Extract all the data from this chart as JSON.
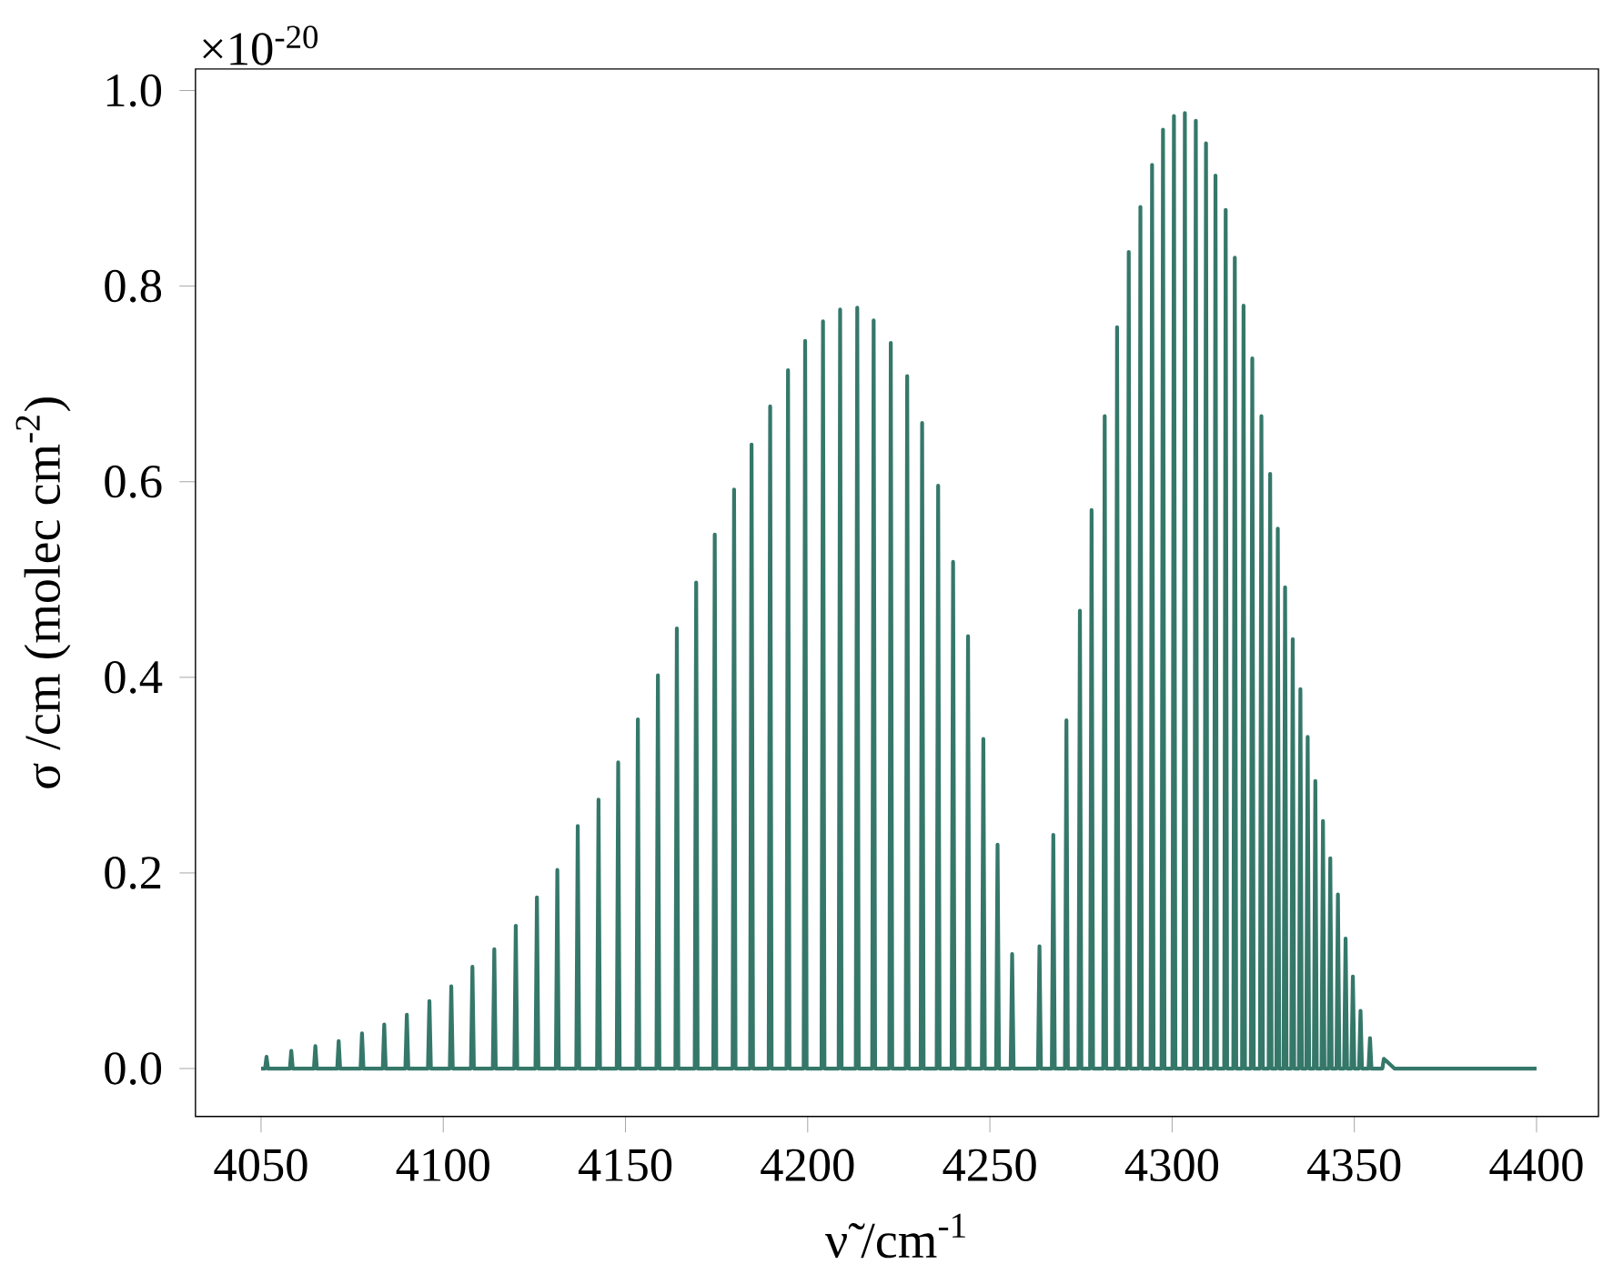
{
  "chart_data": {
    "type": "line",
    "xlabel": "ν̃ /cm$^{-1}$",
    "ylabel": "σ /cm (molec cm$^{-2}$)",
    "annotations": [
      "×10$^{-20}$"
    ],
    "color": "#35786a",
    "xlim": [
      4032,
      4417
    ],
    "ylim": [
      -0.049,
      1.022
    ],
    "xticks": [
      4050,
      4100,
      4150,
      4200,
      4250,
      4300,
      4350,
      4400
    ],
    "yticks": [
      {
        "value": 0,
        "label": "0.0"
      },
      0.2,
      0.4,
      0.6,
      0.8,
      {
        "value": 1,
        "label": "1.0"
      }
    ],
    "x": [
      4050,
      4051.1,
      4051.5,
      4051.9,
      4057.9,
      4058.3,
      4058.7,
      4064.5,
      4064.9,
      4065.3,
      4070.9,
      4071.3,
      4071.7,
      4077.3,
      4077.7,
      4078.1,
      4083.4,
      4083.8,
      4084.2,
      4089.6,
      4090.0,
      4090.4,
      4095.8,
      4096.2,
      4096.6,
      4101.8,
      4102.2,
      4102.6,
      4107.6,
      4108.0,
      4108.4,
      4113.6,
      4114.0,
      4114.4,
      4119.5,
      4119.9,
      4120.3,
      4125.3,
      4125.7,
      4126.1,
      4130.9,
      4131.3,
      4131.7,
      4136.5,
      4136.9,
      4137.3,
      4142.2,
      4142.6,
      4143.0,
      4147.6,
      4148.0,
      4148.4,
      4153.0,
      4153.4,
      4153.8,
      4158.5,
      4158.9,
      4159.3,
      4163.7,
      4164.1,
      4164.5,
      4169.0,
      4169.4,
      4169.8,
      4174.1,
      4174.5,
      4174.9,
      4179.4,
      4179.8,
      4180.2,
      4184.2,
      4184.6,
      4185.0,
      4189.3,
      4189.7,
      4190.1,
      4194.2,
      4194.6,
      4195.0,
      4198.9,
      4199.3,
      4199.7,
      4203.8,
      4204.2,
      4204.6,
      4208.5,
      4208.9,
      4209.3,
      4213.2,
      4213.6,
      4214.0,
      4217.7,
      4218.1,
      4218.5,
      4222.4,
      4222.8,
      4223.2,
      4226.9,
      4227.3,
      4227.7,
      4231.0,
      4231.4,
      4231.8,
      4235.4,
      4235.8,
      4236.2,
      4239.5,
      4239.9,
      4240.3,
      4243.6,
      4244.0,
      4244.4,
      4247.8,
      4248.2,
      4248.6,
      4251.7,
      4252.1,
      4252.5,
      4255.7,
      4256.1,
      4256.5,
      4263.2,
      4263.6,
      4264.0,
      4267.0,
      4267.4,
      4267.8,
      4270.6,
      4271.0,
      4271.4,
      4274.3,
      4274.7,
      4275.1,
      4277.5,
      4277.9,
      4278.3,
      4281.1,
      4281.5,
      4281.9,
      4284.5,
      4284.9,
      4285.3,
      4287.7,
      4288.1,
      4288.5,
      4290.9,
      4291.3,
      4291.7,
      4294.1,
      4294.5,
      4294.9,
      4297.1,
      4297.5,
      4297.9,
      4300.1,
      4300.5,
      4300.9,
      4303.1,
      4303.5,
      4303.9,
      4306.1,
      4306.5,
      4306.9,
      4308.9,
      4309.3,
      4309.7,
      4311.5,
      4311.9,
      4312.3,
      4314.3,
      4314.7,
      4315.1,
      4316.8,
      4317.2,
      4317.6,
      4319.2,
      4319.6,
      4320.0,
      4321.6,
      4322.0,
      4322.4,
      4324.1,
      4324.5,
      4324.9,
      4326.5,
      4326.9,
      4327.3,
      4328.6,
      4329.0,
      4329.4,
      4330.6,
      4331.0,
      4331.4,
      4332.7,
      4333.1,
      4333.5,
      4334.8,
      4335.2,
      4335.6,
      4336.8,
      4337.2,
      4337.6,
      4338.9,
      4339.3,
      4339.7,
      4341.0,
      4341.4,
      4341.8,
      4343.0,
      4343.4,
      4343.8,
      4345.1,
      4345.5,
      4345.9,
      4347.2,
      4347.6,
      4348.0,
      4349.2,
      4349.6,
      4350.0,
      4351.3,
      4351.7,
      4352.1,
      4353.9,
      4354.3,
      4354.7,
      4357.7,
      4358.1,
      4361,
      4400
    ],
    "values": [
      0,
      0,
      0.012,
      0,
      0,
      0.018,
      0,
      0,
      0.023,
      0,
      0,
      0.028,
      0,
      0,
      0.036,
      0,
      0,
      0.045,
      0,
      0,
      0.055,
      0,
      0,
      0.069,
      0,
      0,
      0.084,
      0,
      0,
      0.104,
      0,
      0,
      0.122,
      0,
      0,
      0.146,
      0,
      0,
      0.175,
      0,
      0,
      0.203,
      0,
      0,
      0.248,
      0,
      0,
      0.275,
      0,
      0,
      0.313,
      0,
      0,
      0.357,
      0,
      0,
      0.402,
      0,
      0,
      0.45,
      0,
      0,
      0.497,
      0,
      0,
      0.546,
      0,
      0,
      0.592,
      0,
      0,
      0.638,
      0,
      0,
      0.677,
      0,
      0,
      0.714,
      0,
      0,
      0.744,
      0,
      0,
      0.764,
      0,
      0,
      0.776,
      0,
      0,
      0.778,
      0,
      0,
      0.765,
      0,
      0,
      0.742,
      0,
      0,
      0.708,
      0,
      0,
      0.66,
      0,
      0,
      0.596,
      0,
      0,
      0.518,
      0,
      0,
      0.442,
      0,
      0,
      0.337,
      0,
      0,
      0.229,
      0,
      0,
      0.117,
      0,
      0,
      0.125,
      0,
      0,
      0.239,
      0,
      0,
      0.356,
      0,
      0,
      0.468,
      0,
      0,
      0.571,
      0,
      0,
      0.667,
      0,
      0,
      0.758,
      0,
      0,
      0.835,
      0,
      0,
      0.881,
      0,
      0,
      0.924,
      0,
      0,
      0.96,
      0,
      0,
      0.974,
      0,
      0,
      0.977,
      0,
      0,
      0.969,
      0,
      0,
      0.946,
      0,
      0,
      0.913,
      0,
      0,
      0.878,
      0,
      0,
      0.829,
      0,
      0,
      0.78,
      0,
      0,
      0.726,
      0,
      0,
      0.667,
      0,
      0,
      0.608,
      0,
      0,
      0.552,
      0,
      0,
      0.492,
      0,
      0,
      0.439,
      0,
      0,
      0.388,
      0,
      0,
      0.339,
      0,
      0,
      0.294,
      0,
      0,
      0.253,
      0,
      0,
      0.215,
      0,
      0,
      0.178,
      0,
      0,
      0.133,
      0,
      0,
      0.094,
      0,
      0,
      0.059,
      0,
      0,
      0.031,
      0,
      0,
      0.01,
      0,
      0
    ]
  }
}
